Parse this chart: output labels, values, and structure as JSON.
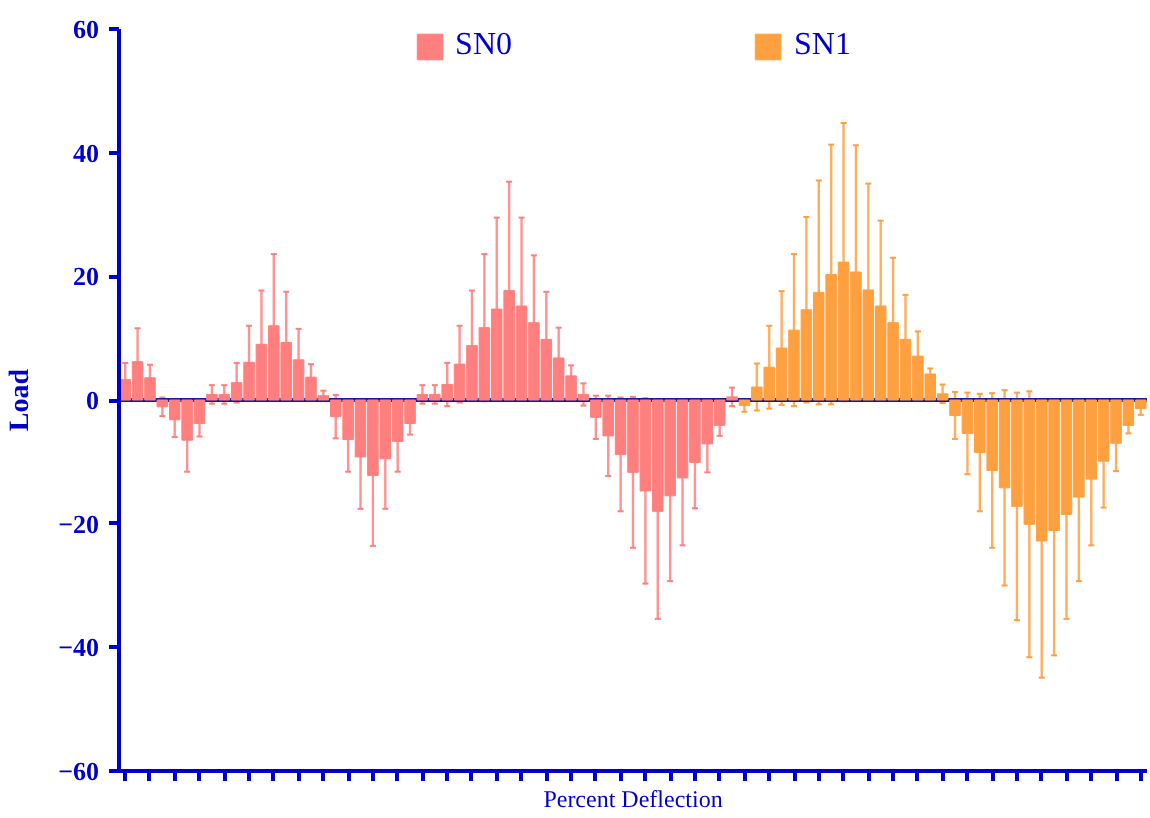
{
  "chart_data": {
    "type": "bar",
    "xlabel": "Percent Deflection",
    "ylabel": "Load",
    "categories": [
      null,
      null,
      null,
      null,
      null,
      null,
      null,
      null,
      null,
      null,
      null,
      null,
      null,
      null,
      null,
      null,
      null,
      null,
      null,
      null,
      null,
      null,
      null,
      null,
      null,
      null,
      null,
      null,
      null,
      null,
      null,
      null,
      null,
      null,
      null,
      null,
      null,
      null,
      null,
      null,
      null,
      null,
      null,
      null,
      null,
      null,
      null,
      null,
      null,
      null,
      null,
      null,
      null,
      null,
      null,
      null,
      null,
      null,
      null,
      null,
      null,
      null,
      null,
      null,
      null,
      null,
      null,
      null,
      null,
      null,
      null,
      null,
      null,
      null,
      null,
      null,
      null,
      null,
      null,
      null,
      null,
      null,
      null
    ],
    "series": [
      {
        "name": "SN0",
        "color": "#ff7f7f",
        "values": [
          3.3,
          6.2,
          3.6,
          -1.1,
          -3.2,
          -6.5,
          -3.8,
          0.9,
          0.9,
          2.8,
          6.1,
          9,
          12,
          9.3,
          6.5,
          3.7,
          0.7,
          -2.7,
          -6.4,
          -9.2,
          -12.2,
          -9.5,
          -6.7,
          -3.8,
          0.9,
          0.9,
          2.5,
          5.8,
          8.8,
          11.7,
          14.7,
          17.7,
          15.2,
          12.5,
          9.8,
          6.8,
          3.9,
          0.9,
          -2.8,
          -5.8,
          -8.8,
          -11.7,
          -14.7,
          -18,
          -15.5,
          -12.6,
          -10.1,
          -7.1,
          -4.1,
          0.5,
          null,
          null,
          null,
          null,
          null,
          null,
          null,
          null,
          null,
          null,
          null,
          null,
          null,
          null,
          null,
          null,
          null,
          null,
          null,
          null,
          null,
          null,
          null,
          null,
          null,
          null,
          null,
          null,
          null,
          null,
          null,
          null,
          null
        ],
        "errors": [
          2.7,
          5.4,
          2.1,
          1.5,
          2.8,
          5.1,
          2.1,
          1.5,
          1.5,
          3.2,
          5.9,
          8.7,
          11.6,
          8.2,
          5,
          2.1,
          0.8,
          3.5,
          5.2,
          8.4,
          11.4,
          8.1,
          4.9,
          1.8,
          1.5,
          1.5,
          3.5,
          6.2,
          8.9,
          11.9,
          14.8,
          17.6,
          14.3,
          10.9,
          7.7,
          4.9,
          1.7,
          1.8,
          3.5,
          6.5,
          9.2,
          12.2,
          15,
          17.4,
          13.8,
          10.9,
          7.4,
          4.6,
          1.7,
          1.5,
          null,
          null,
          null,
          null,
          null,
          null,
          null,
          null,
          null,
          null,
          null,
          null,
          null,
          null,
          null,
          null,
          null,
          null,
          null,
          null,
          null,
          null,
          null,
          null,
          null,
          null,
          null,
          null,
          null,
          null,
          null,
          null,
          null
        ]
      },
      {
        "name": "SN1",
        "color": "#ffa040",
        "values": [
          null,
          null,
          null,
          null,
          null,
          null,
          null,
          null,
          null,
          null,
          null,
          null,
          null,
          null,
          null,
          null,
          null,
          null,
          null,
          null,
          null,
          null,
          null,
          null,
          null,
          null,
          null,
          null,
          null,
          null,
          null,
          null,
          null,
          null,
          null,
          null,
          null,
          null,
          null,
          null,
          null,
          null,
          null,
          null,
          null,
          null,
          null,
          null,
          null,
          null,
          -0.9,
          2.1,
          5.3,
          8.4,
          11.3,
          14.6,
          17.4,
          20.3,
          22.3,
          20.7,
          17.8,
          15.2,
          12.5,
          9.8,
          7.1,
          4.2,
          1,
          -2.5,
          -5.4,
          -8.5,
          -11.4,
          -14.2,
          -17.2,
          -20.1,
          -22.8,
          -21.1,
          -18.5,
          -15.7,
          -12.8,
          -9.9,
          -7,
          -4.1,
          -1.4
        ],
        "errors": [
          null,
          null,
          null,
          null,
          null,
          null,
          null,
          null,
          null,
          null,
          null,
          null,
          null,
          null,
          null,
          null,
          null,
          null,
          null,
          null,
          null,
          null,
          null,
          null,
          null,
          null,
          null,
          null,
          null,
          null,
          null,
          null,
          null,
          null,
          null,
          null,
          null,
          null,
          null,
          null,
          null,
          null,
          null,
          null,
          null,
          null,
          null,
          null,
          null,
          null,
          1,
          3.8,
          6.7,
          9.2,
          12.3,
          15,
          18.1,
          21,
          22.5,
          20.5,
          17.2,
          13.8,
          10.5,
          7.2,
          4,
          0.9,
          1.5,
          3.8,
          6.6,
          9.5,
          12.5,
          15.8,
          18.4,
          21.5,
          22.1,
          20.2,
          16.9,
          13.6,
          10.7,
          7.5,
          4.5,
          1.3,
          1
        ]
      }
    ],
    "ylim": [
      -60,
      60
    ],
    "yticks": [
      -60,
      -40,
      -20,
      0,
      20,
      40,
      60
    ],
    "grid": false,
    "legend": "top",
    "ref_lines": [
      {
        "axis": "y",
        "value": 0,
        "color": "#1a1a99"
      }
    ]
  }
}
